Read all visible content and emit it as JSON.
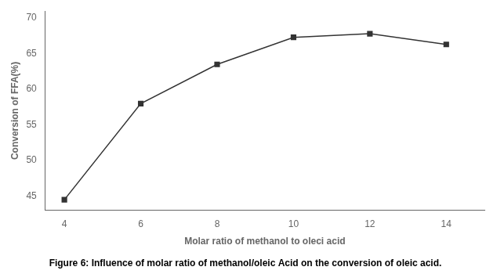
{
  "chart_data": {
    "type": "line",
    "title": "Figure 6: Influence of molar ratio of methanol/oleic Acid on the conversion of oleic acid.",
    "x_label": "Molar ratio of methanol to oleci acid",
    "y_label": "Conversion of FFA(%)",
    "x": [
      4,
      6,
      8,
      10,
      12,
      14
    ],
    "values": [
      44.5,
      58.0,
      63.5,
      67.3,
      67.8,
      66.3
    ],
    "color": "#333333",
    "marker": "square",
    "xlim": [
      3.5,
      15
    ],
    "ylim": [
      43,
      71
    ],
    "xticks": [
      4,
      6,
      8,
      10,
      12,
      14
    ],
    "yticks": [
      45,
      50,
      55,
      60,
      65,
      70
    ],
    "grid": false
  }
}
